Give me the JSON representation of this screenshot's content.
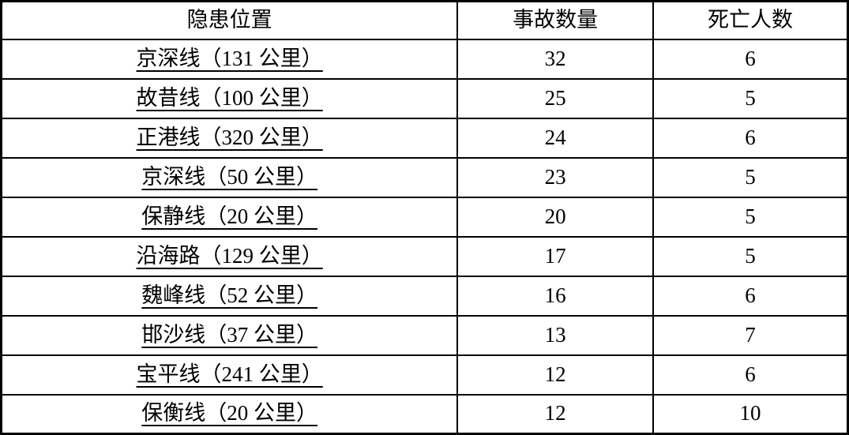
{
  "table": {
    "headers": [
      "隐患位置",
      "事故数量",
      "死亡人数"
    ],
    "rows": [
      {
        "location": "京深线（131 公里）",
        "accidents": "32",
        "deaths": "6"
      },
      {
        "location": "故昔线（100 公里）",
        "accidents": "25",
        "deaths": "5"
      },
      {
        "location": "正港线（320 公里）",
        "accidents": "24",
        "deaths": "6"
      },
      {
        "location": "京深线（50 公里）",
        "accidents": "23",
        "deaths": "5"
      },
      {
        "location": "保静线（20 公里）",
        "accidents": "20",
        "deaths": "5"
      },
      {
        "location": "沿海路（129 公里）",
        "accidents": "17",
        "deaths": "5"
      },
      {
        "location": "魏峰线（52 公里）",
        "accidents": "16",
        "deaths": "6"
      },
      {
        "location": "邯沙线（37 公里）",
        "accidents": "13",
        "deaths": "7"
      },
      {
        "location": "宝平线（241 公里）",
        "accidents": "12",
        "deaths": "6"
      },
      {
        "location": "保衡线（20 公里）",
        "accidents": "12",
        "deaths": "10"
      }
    ]
  },
  "chart_data": {
    "type": "table",
    "title": "",
    "columns": [
      "隐患位置",
      "事故数量",
      "死亡人数"
    ],
    "categories": [
      "京深线（131 公里）",
      "故昔线（100 公里）",
      "正港线（320 公里）",
      "京深线（50 公里）",
      "保静线（20 公里）",
      "沿海路（129 公里）",
      "魏峰线（52 公里）",
      "邯沙线（37 公里）",
      "宝平线（241 公里）",
      "保衡线（20 公里）"
    ],
    "series": [
      {
        "name": "事故数量",
        "values": [
          32,
          25,
          24,
          23,
          20,
          17,
          16,
          13,
          12,
          12
        ]
      },
      {
        "name": "死亡人数",
        "values": [
          6,
          5,
          6,
          5,
          5,
          5,
          6,
          7,
          6,
          10
        ]
      }
    ]
  },
  "colors": {
    "border": "#000000",
    "text": "#000000",
    "background": "#ffffff"
  }
}
